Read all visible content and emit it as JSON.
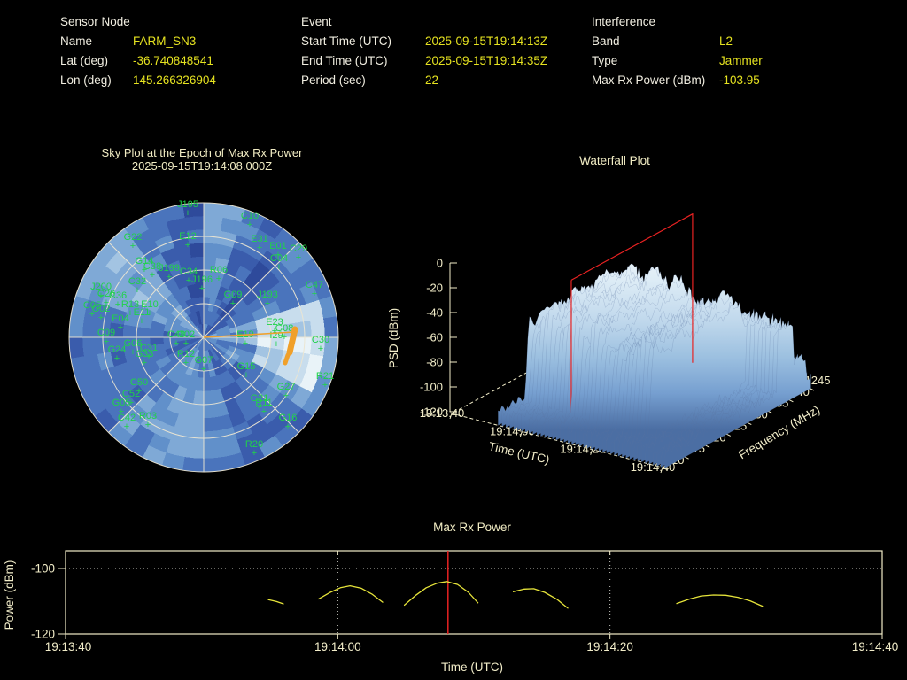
{
  "header": {
    "label_color": "#f1eee1",
    "value_color": "#e6e320",
    "sections": [
      {
        "title": "Sensor Node",
        "rows": [
          [
            "Name",
            "FARM_SN3"
          ],
          [
            "Lat (deg)",
            "-36.740848541"
          ],
          [
            "Lon (deg)",
            "145.266326904"
          ]
        ]
      },
      {
        "title": "Event",
        "rows": [
          [
            "Start Time (UTC)",
            "2025-09-15T19:14:13Z"
          ],
          [
            "End Time (UTC)",
            "2025-09-15T19:14:35Z"
          ],
          [
            "Period (sec)",
            "22"
          ]
        ]
      },
      {
        "title": "Interference",
        "rows": [
          [
            "Band",
            "L2"
          ],
          [
            "Type",
            "Jammer"
          ],
          [
            "Max Rx Power (dBm)",
            "-103.95"
          ]
        ]
      }
    ]
  },
  "chart_data": [
    {
      "id": "skyplot",
      "type": "heatmap",
      "projection": "polar",
      "title": "Sky Plot at the Epoch of Max Rx Power",
      "subtitle": "2025-09-15T19:14:08.000Z",
      "rings": 4,
      "spokes": 8,
      "seed": 13,
      "palette": [
        "#2e4a9b",
        "#3a5cac",
        "#4a74bc",
        "#6190ca",
        "#7fa9d6",
        "#a3c4e2",
        "#c8dded",
        "#e9f3f8"
      ],
      "grid_color": "#ece6d2",
      "label_color": "#20d24a",
      "hotspot": {
        "az_deg": [
          76,
          114
        ],
        "ring": [
          4,
          8
        ]
      },
      "satellites": [
        [
          "J195",
          212,
          231
        ],
        [
          "C10",
          282,
          244
        ],
        [
          "G22",
          150,
          268
        ],
        [
          "E12",
          212,
          267
        ],
        [
          "E31",
          293,
          270
        ],
        [
          "E01",
          314,
          278
        ],
        [
          "C29",
          337,
          281
        ],
        [
          "C04",
          315,
          292
        ],
        [
          "G14",
          163,
          295
        ],
        [
          "C38",
          172,
          301
        ],
        [
          "J199",
          191,
          303
        ],
        [
          "C34",
          213,
          307
        ],
        [
          "R06",
          247,
          305
        ],
        [
          "J196",
          228,
          316
        ],
        [
          "C32",
          155,
          318
        ],
        [
          "C47",
          355,
          322
        ],
        [
          "G09",
          263,
          333
        ],
        [
          "J193",
          302,
          333
        ],
        [
          "J200",
          114,
          324
        ],
        [
          "C26",
          120,
          332
        ],
        [
          "C36",
          133,
          334
        ],
        [
          "C05",
          104,
          345
        ],
        [
          "G02",
          114,
          349
        ],
        [
          "R13",
          147,
          344
        ],
        [
          "E10",
          169,
          344
        ],
        [
          "E11",
          160,
          353
        ],
        [
          "E04",
          136,
          360
        ],
        [
          "C09",
          120,
          376
        ],
        [
          "C48",
          199,
          378
        ],
        [
          "C02",
          210,
          378
        ],
        [
          "E19",
          277,
          378
        ],
        [
          "E23",
          310,
          364
        ],
        [
          "G08",
          321,
          371
        ],
        [
          "I29",
          312,
          379
        ],
        [
          "C30",
          362,
          384
        ],
        [
          "G06",
          150,
          388
        ],
        [
          "G24",
          132,
          395
        ],
        [
          "C31",
          168,
          393
        ],
        [
          "G33",
          163,
          400
        ],
        [
          "R12",
          210,
          400
        ],
        [
          "G07",
          230,
          407
        ],
        [
          "G15",
          278,
          414
        ],
        [
          "R21",
          367,
          425
        ],
        [
          "C50",
          157,
          432
        ],
        [
          "C52",
          148,
          445
        ],
        [
          "G05",
          137,
          455
        ],
        [
          "C42",
          143,
          472
        ],
        [
          "R03",
          167,
          470
        ],
        [
          "G27",
          323,
          437
        ],
        [
          "G21",
          293,
          450
        ],
        [
          "R11",
          298,
          455
        ],
        [
          "G16",
          325,
          472
        ],
        [
          "R20",
          287,
          502
        ]
      ],
      "jammer": {
        "color": "#f0a02a",
        "bearing_line": [
          [
            0,
            0
          ],
          [
            102,
            -6
          ]
        ],
        "trail": [
          [
            103,
            -9
          ],
          [
            97,
            17
          ]
        ],
        "trail2": [
          [
            95,
            20
          ],
          [
            92,
            29
          ]
        ]
      }
    },
    {
      "id": "waterfall",
      "type": "surface",
      "title": "Waterfall Plot",
      "time_label": "Time (UTC)",
      "time_ticks": [
        "19:13:40",
        "19:14:00",
        "19:14:20",
        "19:14:40"
      ],
      "freq_label": "Frequency (MHz)",
      "freq_ticks": [
        1210,
        1215,
        1220,
        1225,
        1230,
        1235,
        1240,
        1245
      ],
      "psd_label": "PSD (dBm)",
      "psd_ticks": [
        0,
        -20,
        -40,
        -60,
        -80,
        -100,
        -120
      ],
      "freq_range_mhz": [
        1210,
        1245
      ],
      "time_span_sec": 60,
      "psd_range": [
        -120,
        0
      ],
      "slice": {
        "epoch": "19:14:08",
        "t": 0.477,
        "f0": 0.13,
        "f1": 0.96,
        "color": "#e82222"
      },
      "surface": {
        "seed": 42,
        "noise_floor_dbm": -109,
        "band_f": [
          0.14,
          0.78
        ],
        "plateau_peak_dbm": -26,
        "gap_dbm": -52,
        "shoulder": {
          "f": [
            0.775,
            0.885
          ],
          "dbm": -60
        },
        "shoulder2": {
          "f": [
            0.885,
            0.97
          ],
          "dbm": -92
        },
        "t_start": 0.22,
        "t_end": 1.01,
        "active_sec": [
          14.5,
          51.5
        ]
      },
      "axis_color": "#f2edc9"
    },
    {
      "id": "max_rx_power",
      "type": "line",
      "title": "Max Rx Power",
      "xlabel": "Time (UTC)",
      "ylabel": "Power (dBm)",
      "x_ticks": [
        "19:13:40",
        "19:14:00",
        "19:14:20",
        "19:14:40"
      ],
      "x_span_sec": 60,
      "y_ticks": [
        -100,
        -120
      ],
      "ylim": [
        -120,
        -94.6
      ],
      "grid_y_dbm": -100,
      "grid_x_sec": [
        20,
        40
      ],
      "marker_sec": 28.1,
      "marker_color": "#e82222",
      "axis_color": "#f2edc9",
      "grid_color": "#cfcfc8",
      "series": [
        {
          "name": "Max Rx Power",
          "color": "#e6e43a",
          "segments": [
            [
              [
                14.9,
                -109.5
              ],
              [
                15.5,
                -110.1
              ],
              [
                16.0,
                -110.8
              ]
            ],
            [
              [
                18.6,
                -109.3
              ],
              [
                19.4,
                -107.4
              ],
              [
                20.2,
                -105.9
              ],
              [
                20.9,
                -105.3
              ],
              [
                21.7,
                -106.0
              ],
              [
                22.5,
                -107.8
              ],
              [
                23.3,
                -110.3
              ]
            ],
            [
              [
                24.9,
                -111.2
              ],
              [
                25.7,
                -108.3
              ],
              [
                26.5,
                -105.9
              ],
              [
                27.3,
                -104.5
              ],
              [
                28.0,
                -104.0
              ],
              [
                28.8,
                -104.9
              ],
              [
                29.6,
                -107.3
              ],
              [
                30.3,
                -110.5
              ]
            ],
            [
              [
                32.9,
                -107.1
              ],
              [
                33.7,
                -106.3
              ],
              [
                34.4,
                -106.2
              ],
              [
                35.2,
                -107.3
              ],
              [
                36.1,
                -109.4
              ],
              [
                36.9,
                -112.1
              ]
            ],
            [
              [
                44.9,
                -110.7
              ],
              [
                45.8,
                -109.4
              ],
              [
                46.7,
                -108.4
              ],
              [
                47.6,
                -108.1
              ],
              [
                48.5,
                -108.2
              ],
              [
                49.4,
                -108.8
              ],
              [
                50.3,
                -109.9
              ],
              [
                51.2,
                -111.5
              ]
            ]
          ]
        }
      ]
    }
  ]
}
